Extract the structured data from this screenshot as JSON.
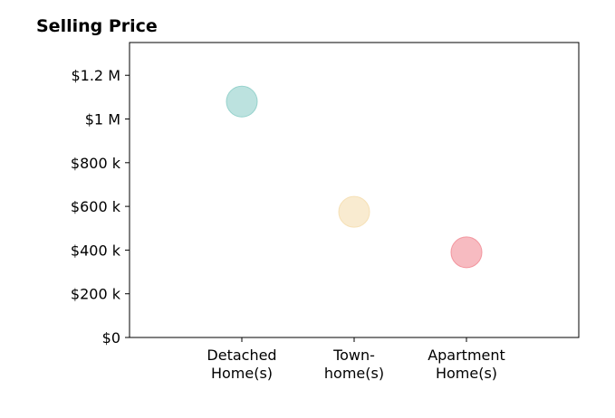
{
  "chart_data": {
    "type": "scatter",
    "title": "Selling Price",
    "xlabel": "",
    "ylabel": "",
    "categories": [
      [
        "Detached",
        "Home(s)"
      ],
      [
        "Town-",
        "home(s)"
      ],
      [
        "Apartment",
        "Home(s)"
      ]
    ],
    "values": [
      1080000,
      575000,
      390000
    ],
    "ylim": [
      0,
      1350000
    ],
    "yticks": [
      0,
      200000,
      400000,
      600000,
      800000,
      1000000,
      1200000
    ],
    "ytick_labels": [
      "$0",
      "$200 k",
      "$400 k",
      "$600 k",
      "$800 k",
      "$1 M",
      "$1.2 M"
    ],
    "colors": [
      "#8fcfc9",
      "#f5deb0",
      "#f28e98"
    ],
    "grid": false,
    "legend": "none"
  }
}
